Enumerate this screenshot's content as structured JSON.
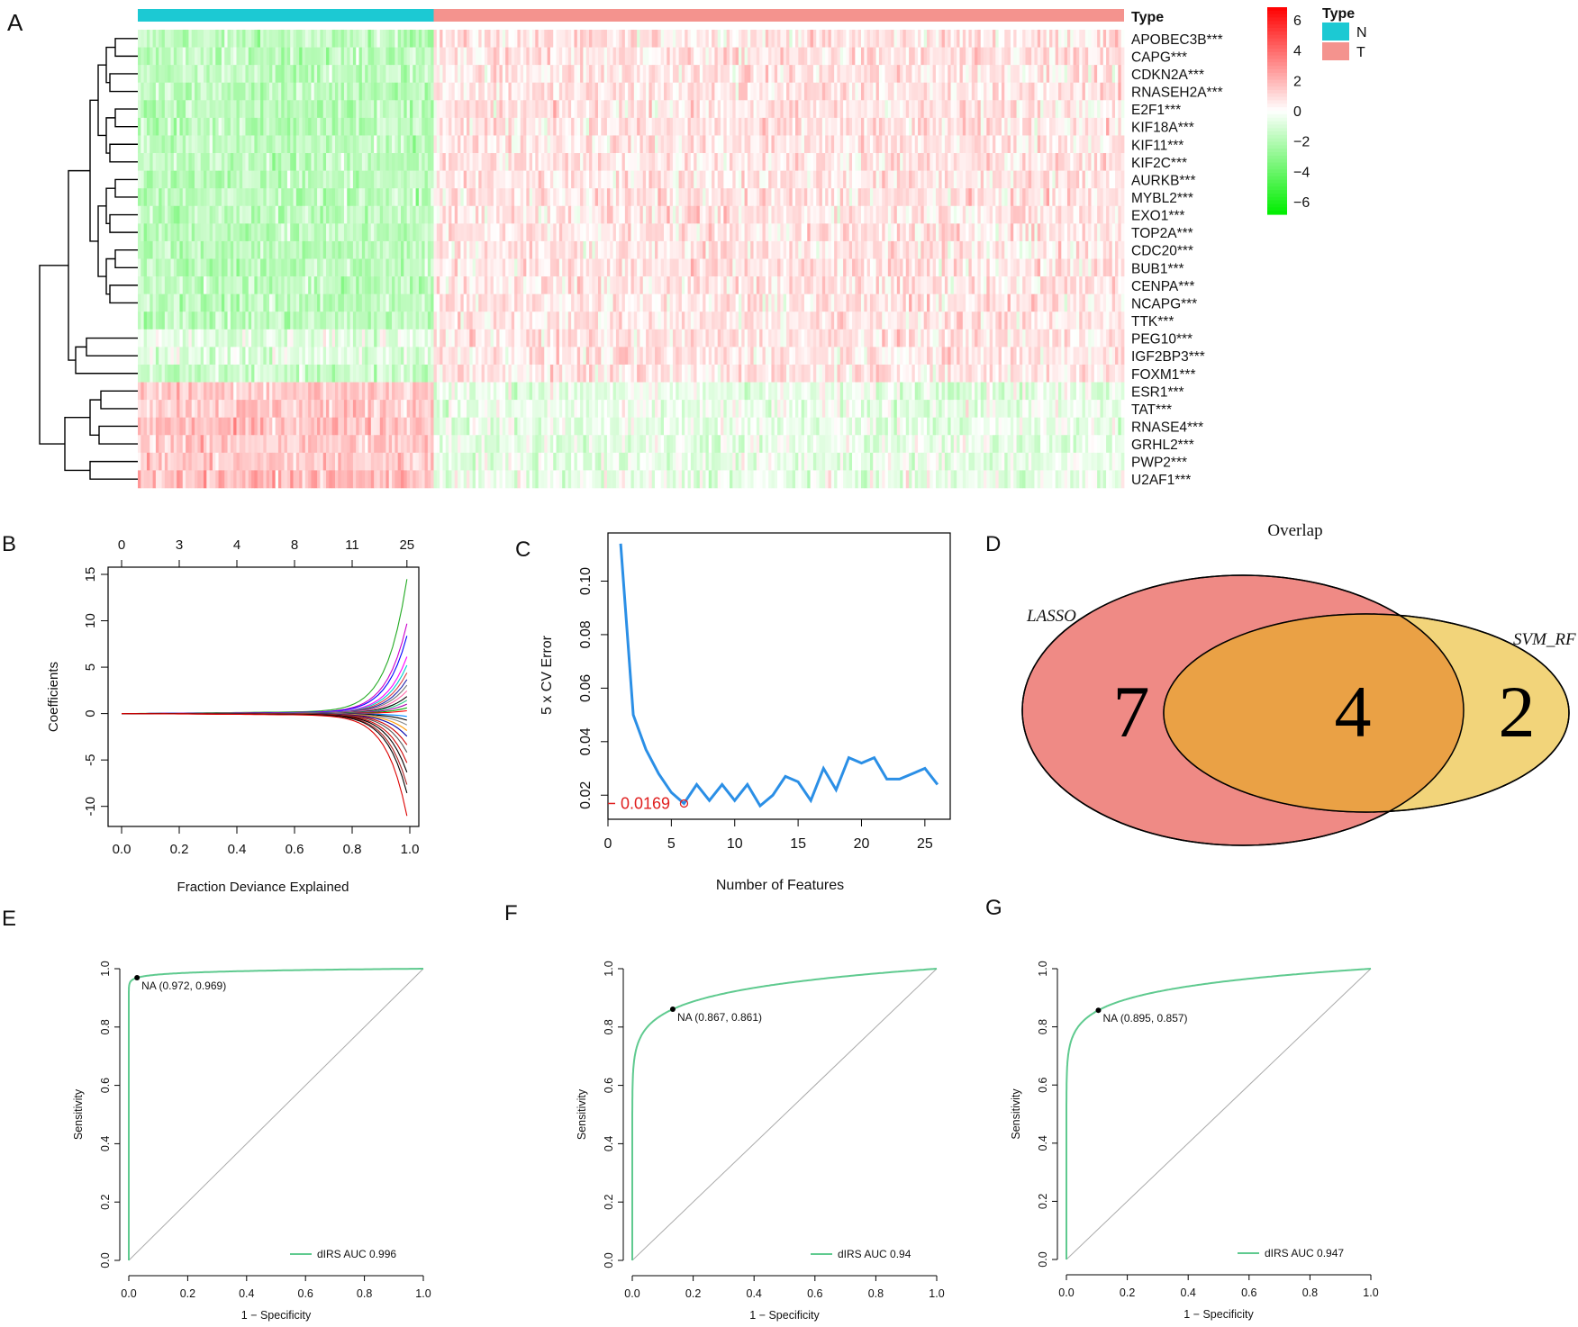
{
  "panels": {
    "a": "A",
    "b": "B",
    "c": "C",
    "d": "D",
    "e": "E",
    "f": "F",
    "g": "G"
  },
  "chart_data": [
    {
      "panel": "A",
      "type": "heatmap",
      "annotation_title": "Type",
      "groups": [
        {
          "name": "N",
          "color": "#1cc9d3",
          "n_fraction": 0.3
        },
        {
          "name": "T",
          "color": "#f4938e",
          "n_fraction": 0.7
        }
      ],
      "genes": [
        "APOBEC3B***",
        "CAPG***",
        "CDKN2A***",
        "RNASEH2A***",
        "E2F1***",
        "KIF18A***",
        "KIF11***",
        "KIF2C***",
        "AURKB***",
        "MYBL2***",
        "EXO1***",
        "TOP2A***",
        "CDC20***",
        "BUB1***",
        "CENPA***",
        "NCAPG***",
        "TTK***",
        "PEG10***",
        "IGF2BP3***",
        "FOXM1***",
        "ESR1***",
        "TAT***",
        "RNASE4***",
        "GRHL2***",
        "PWP2***",
        "U2AF1***"
      ],
      "row_pattern": {
        "N": [
          -1.5,
          -1.5,
          -1.5,
          -1.5,
          -1.5,
          -1.5,
          -1.5,
          -1.5,
          -1.5,
          -1.5,
          -1.5,
          -1.5,
          -1.5,
          -1.5,
          -1.5,
          -1.5,
          -1.5,
          -0.6,
          -0.7,
          -1.2,
          1.3,
          1.3,
          1.5,
          1.2,
          1.2,
          1.6
        ],
        "T": [
          0.6,
          0.6,
          0.6,
          0.6,
          0.6,
          0.6,
          0.6,
          0.6,
          0.6,
          0.6,
          0.6,
          0.6,
          0.6,
          0.6,
          0.6,
          0.6,
          0.6,
          0.6,
          0.6,
          0.6,
          -0.5,
          -0.5,
          -0.5,
          -0.5,
          -0.5,
          -0.5
        ]
      },
      "scale": {
        "ticks": [
          6,
          4,
          2,
          0,
          -2,
          -4,
          -6
        ],
        "tick_labels": [
          "6",
          "4",
          "2",
          "0",
          "−2",
          "−4",
          "−6"
        ],
        "high_color": "#ff0000",
        "mid_color": "#ffffff",
        "low_color": "#00ee00"
      },
      "legend": {
        "title": "Type",
        "items": [
          {
            "label": "N",
            "color": "#1cc9d3"
          },
          {
            "label": "T",
            "color": "#f4938e"
          }
        ]
      }
    },
    {
      "panel": "B",
      "type": "line",
      "xlabel": "Fraction Deviance Explained",
      "ylabel": "Coefficients",
      "xlim": [
        0,
        1.0
      ],
      "ylim": [
        -11,
        15
      ],
      "xticks": [
        "0.0",
        "0.2",
        "0.4",
        "0.6",
        "0.8",
        "1.0"
      ],
      "yticks": [
        "-10",
        "-5",
        "0",
        "5",
        "10",
        "15"
      ],
      "top_axis_values": [
        0,
        0.2,
        0.4,
        0.6,
        0.8,
        0.99
      ],
      "top_axis_labels": [
        "0",
        "3",
        "4",
        "8",
        "11",
        "25"
      ],
      "series_finals": [
        14.2,
        9.5,
        8.2,
        6.0,
        5.1,
        4.3,
        3.6,
        3.0,
        2.4,
        1.8,
        1.4,
        1.0,
        0.6,
        0.3,
        -0.3,
        -0.7,
        -1.2,
        -1.8,
        -2.4,
        -3.3,
        -4.1,
        -5.2,
        -6.2,
        -7.5,
        -8.4,
        -10.8
      ],
      "series_colors": [
        "#22aa22",
        "#cc00cc",
        "#0000ff",
        "#ff00ff",
        "#00cccc",
        "#dd4444",
        "#2222aa",
        "#777777",
        "#ff66aa",
        "#000000",
        "#33cc88",
        "#aa00aa",
        "#00aa00",
        "#ff0000",
        "#0088ff",
        "#000000",
        "#888888",
        "#ff9900",
        "#0000aa",
        "#cc0000",
        "#555555",
        "#cc0000",
        "#000000",
        "#aa2222",
        "#000000",
        "#dd0000"
      ]
    },
    {
      "panel": "C",
      "type": "line",
      "xlabel": "Number of Features",
      "ylabel": "5 x CV Error",
      "xlim": [
        0,
        27
      ],
      "ylim": [
        0.011,
        0.118
      ],
      "xticks": [
        "0",
        "5",
        "10",
        "15",
        "20",
        "25"
      ],
      "yticks": [
        "0.02",
        "0.04",
        "0.06",
        "0.08",
        "0.10"
      ],
      "x": [
        1,
        2,
        3,
        4,
        5,
        6,
        7,
        8,
        9,
        10,
        11,
        12,
        13,
        14,
        15,
        16,
        17,
        18,
        19,
        20,
        21,
        22,
        23,
        24,
        25,
        26
      ],
      "y": [
        0.114,
        0.05,
        0.037,
        0.028,
        0.021,
        0.0169,
        0.024,
        0.018,
        0.024,
        0.018,
        0.024,
        0.016,
        0.02,
        0.027,
        0.025,
        0.018,
        0.03,
        0.022,
        0.034,
        0.032,
        0.034,
        0.026,
        0.026,
        0.028,
        0.03,
        0.024
      ],
      "min_point": {
        "x": 6,
        "y": 0.0169,
        "label": "0.0169"
      },
      "line_color": "#2b8fe6"
    },
    {
      "panel": "D",
      "type": "venn",
      "title": "Overlap",
      "sets": [
        {
          "name": "LASSO",
          "color": "#ef8a85"
        },
        {
          "name": "SVM_RFE",
          "visible_label": "SVM_RF",
          "color": "#f2d47a"
        }
      ],
      "counts": {
        "LASSO_only": "7",
        "both": "4",
        "SVM_only": "2"
      },
      "overlap_color": "#eaa145"
    },
    {
      "panel": "E",
      "type": "line",
      "xlabel": "1 − Specificity",
      "ylabel": "Sensitivity",
      "xticks": [
        "0.0",
        "0.2",
        "0.4",
        "0.6",
        "0.8",
        "1.0"
      ],
      "yticks": [
        "0.0",
        "0.2",
        "0.4",
        "0.6",
        "0.8",
        "1.0"
      ],
      "auc": 0.996,
      "legend": "dIRS AUC 0.996",
      "best_point": {
        "fpr": 0.028,
        "tpr": 0.969,
        "label": "NA (0.972, 0.969)"
      },
      "line_color": "#5fca8f"
    },
    {
      "panel": "F",
      "type": "line",
      "xlabel": "1 − Specificity",
      "ylabel": "Sensitivity",
      "xticks": [
        "0.0",
        "0.2",
        "0.4",
        "0.6",
        "0.8",
        "1.0"
      ],
      "yticks": [
        "0.0",
        "0.2",
        "0.4",
        "0.6",
        "0.8",
        "1.0"
      ],
      "auc": 0.94,
      "legend": "dIRS AUC 0.94",
      "best_point": {
        "fpr": 0.133,
        "tpr": 0.861,
        "label": "NA (0.867, 0.861)"
      },
      "line_color": "#5fca8f"
    },
    {
      "panel": "G",
      "type": "line",
      "xlabel": "1 − Specificity",
      "ylabel": "Sensitivity",
      "xticks": [
        "0.0",
        "0.2",
        "0.4",
        "0.6",
        "0.8",
        "1.0"
      ],
      "yticks": [
        "0.0",
        "0.2",
        "0.4",
        "0.6",
        "0.8",
        "1.0"
      ],
      "auc": 0.947,
      "legend": "dIRS AUC 0.947",
      "best_point": {
        "fpr": 0.105,
        "tpr": 0.857,
        "label": "NA (0.895, 0.857)"
      },
      "line_color": "#5fca8f"
    }
  ]
}
